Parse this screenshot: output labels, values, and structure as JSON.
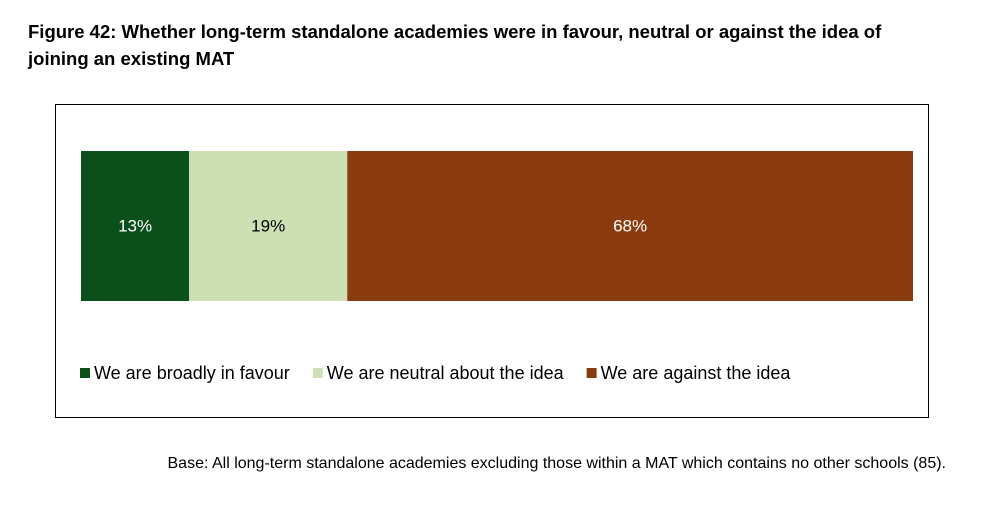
{
  "chart_data": {
    "type": "bar",
    "orientation": "horizontal",
    "stacked": true,
    "title": "Figure 42: Whether long-term standalone academies were in favour, neutral or against the idea of joining an existing MAT",
    "categories": [
      null
    ],
    "xlim": [
      0,
      100
    ],
    "series": [
      {
        "name": "We are broadly in favour",
        "color": "#0b4f1a",
        "values": [
          13
        ],
        "value_labels": [
          "13%"
        ]
      },
      {
        "name": "We are neutral about the idea",
        "color": "#cde0b4",
        "values": [
          19
        ],
        "value_labels": [
          "19%"
        ]
      },
      {
        "name": "We are against the idea",
        "color": "#8a3c0e",
        "values": [
          68
        ],
        "value_labels": [
          "68%"
        ]
      }
    ],
    "legend": "bottom",
    "note": "Base: All long-term standalone academies excluding those within a MAT which contains no other schools (85)."
  }
}
